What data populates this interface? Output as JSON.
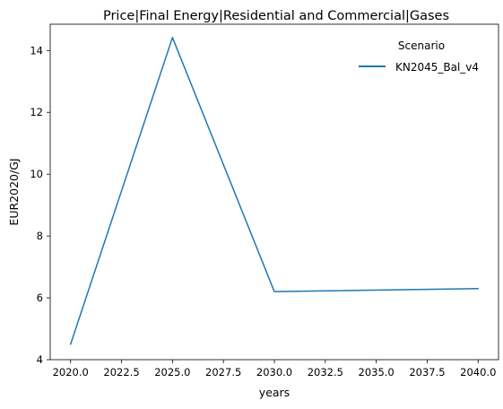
{
  "chart_data": {
    "type": "line",
    "title": "Price|Final Energy|Residential and Commercial|Gases",
    "xlabel": "years",
    "ylabel": "EUR2020/GJ",
    "xlim": [
      2019.0,
      2041.0
    ],
    "ylim": [
      4.0,
      14.85
    ],
    "x_ticks": [
      2020.0,
      2022.5,
      2025.0,
      2027.5,
      2030.0,
      2032.5,
      2035.0,
      2037.5,
      2040.0
    ],
    "x_tick_labels": [
      "2020.0",
      "2022.5",
      "2025.0",
      "2027.5",
      "2030.0",
      "2032.5",
      "2035.0",
      "2037.5",
      "2040.0"
    ],
    "y_ticks": [
      4,
      6,
      8,
      10,
      12,
      14
    ],
    "y_tick_labels": [
      "4",
      "6",
      "8",
      "10",
      "12",
      "14"
    ],
    "grid": false,
    "legend": {
      "title": "Scenario",
      "placement": "top-right"
    },
    "series": [
      {
        "name": "KN2045_Bal_v4",
        "color": "#1f77b4",
        "x": [
          2020,
          2025,
          2030,
          2040
        ],
        "y": [
          4.5,
          14.42,
          6.2,
          6.3
        ]
      }
    ]
  }
}
